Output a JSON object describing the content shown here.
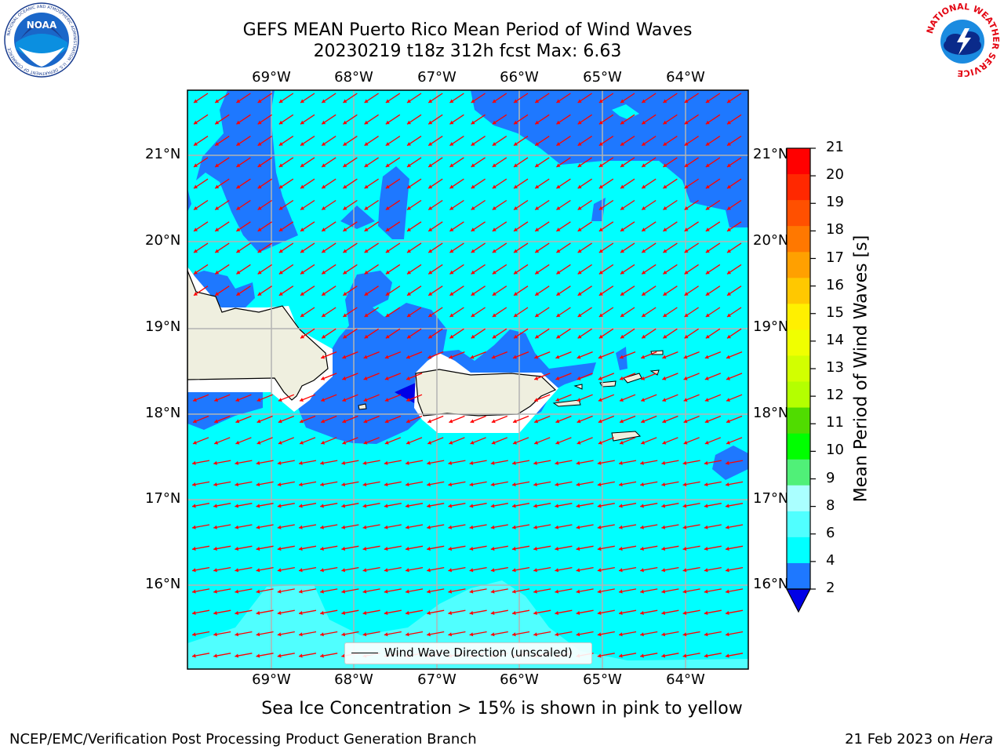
{
  "title": {
    "line1": "GEFS MEAN Puerto Rico Mean Period of Wind Waves",
    "line2": "20230219 t18z 312h fcst   Max: 6.63"
  },
  "logos": {
    "left": {
      "name": "NOAA",
      "ring_text": "NATIONAL OCEANIC AND ATMOSPHERIC ADMINISTRATION · U.S. DEPARTMENT OF COMMERCE"
    },
    "right": {
      "name": "NATIONAL WEATHER SERVICE"
    }
  },
  "map": {
    "lon_labels": [
      "69°W",
      "68°W",
      "67°W",
      "66°W",
      "65°W",
      "64°W"
    ],
    "lat_labels": [
      "21°N",
      "20°N",
      "19°N",
      "18°N",
      "17°N",
      "16°N"
    ],
    "colors": {
      "ocean_4_6": "#00ffff",
      "ocean_2_4": "#1e78ff",
      "ocean_6_8": "#50ffff",
      "ocean_below_2": "#0000e6",
      "land": "#efefdf",
      "arrow": "#ff0000",
      "grid": "#b4b4b4"
    }
  },
  "legend": {
    "label": "Wind Wave Direction (unscaled)"
  },
  "colorbar": {
    "title": "Mean Period of Wind Waves [s]",
    "ticks": [
      "21",
      "20",
      "19",
      "18",
      "17",
      "16",
      "15",
      "14",
      "13",
      "12",
      "11",
      "10",
      "9",
      "8",
      "6",
      "4",
      "2"
    ],
    "colors": [
      "#ff0000",
      "#ff2800",
      "#ff5000",
      "#ff7800",
      "#ffa000",
      "#ffc800",
      "#fff000",
      "#f0ff00",
      "#d2ff00",
      "#b4ff00",
      "#50dc00",
      "#00ff00",
      "#50f078",
      "#aaffff",
      "#50ffff",
      "#00ffff",
      "#1e78ff"
    ],
    "extend_color": "#0000e6"
  },
  "footer": {
    "note": "Sea Ice Concentration > 15% is shown in pink to yellow",
    "left": "NCEP/EMC/Verification Post Processing Product Generation Branch",
    "right_date": "21 Feb 2023 on ",
    "right_host": "Hera"
  }
}
